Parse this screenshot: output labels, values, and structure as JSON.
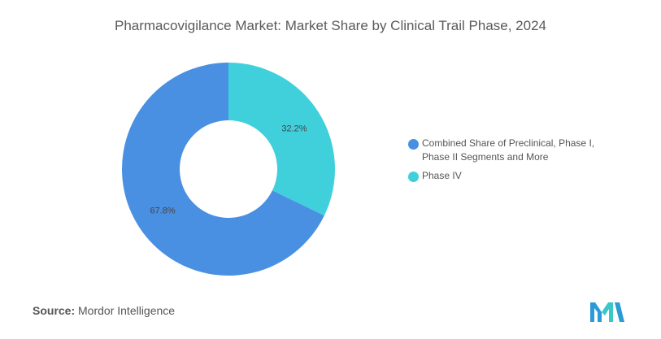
{
  "title": "Pharmacovigilance Market: Market Share by Clinical Trail Phase, 2024",
  "source": {
    "label": "Source:",
    "value": "Mordor Intelligence"
  },
  "chart_data": {
    "type": "pie",
    "variant": "donut",
    "title": "Pharmacovigilance Market: Market Share by Clinical Trail Phase, 2024",
    "unit": "%",
    "legend_position": "right",
    "slices": [
      {
        "name": "Phase IV",
        "value": 32.2,
        "label": "32.2%",
        "color": "#40d0dc"
      },
      {
        "name": "Combined Share of Preclinical, Phase I, Phase II Segments and More",
        "value": 67.8,
        "label": "67.8%",
        "color": "#4a90e2"
      }
    ]
  },
  "legend": {
    "items": [
      {
        "label_line1": "Combined Share of Preclinical, Phase I,",
        "label_line2": "Phase II Segments and More",
        "color": "#4a90e2"
      },
      {
        "label_line1": "Phase IV",
        "label_line2": "",
        "color": "#40d0dc"
      }
    ]
  },
  "logo": {
    "icon": "mordor-intelligence-logo-icon",
    "colors": [
      "#2a9ad8",
      "#3bc6c9"
    ]
  }
}
